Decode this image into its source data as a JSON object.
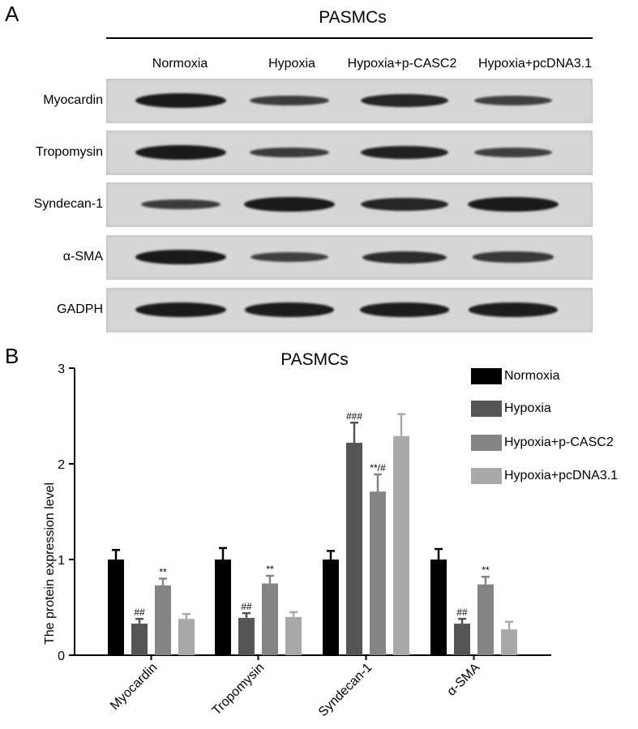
{
  "panel_a": {
    "letter": "A",
    "title": "PASMCs",
    "lanes": [
      "Normoxia",
      "Hypoxia",
      "Hypoxia+p-CASC2",
      "Hypoxia+pcDNA3.1"
    ],
    "rows": [
      {
        "label": "Myocardin",
        "band_intensity": [
          1.0,
          0.55,
          0.85,
          0.5
        ]
      },
      {
        "label": "Tropomysin",
        "band_intensity": [
          1.0,
          0.55,
          0.9,
          0.5
        ]
      },
      {
        "label": "Syndecan-1",
        "band_intensity": [
          0.55,
          1.0,
          0.85,
          1.0
        ]
      },
      {
        "label": "α-SMA",
        "band_intensity": [
          1.0,
          0.5,
          0.75,
          0.6
        ]
      },
      {
        "label": "GADPH",
        "band_intensity": [
          1.0,
          0.95,
          0.95,
          0.95
        ]
      }
    ]
  },
  "chart_data": {
    "type": "bar",
    "letter": "B",
    "title": "PASMCs",
    "xlabel": "",
    "ylabel": "The protein expression level",
    "ylim": [
      0,
      3
    ],
    "yticks": [
      0,
      1,
      2,
      3
    ],
    "categories": [
      "Myocardin",
      "Tropomysin",
      "Syndecan-1",
      "α-SMA"
    ],
    "legend_position": "top-right",
    "series": [
      {
        "name": "Normoxia",
        "color": "#000000",
        "values": [
          1.0,
          1.0,
          1.0,
          1.0
        ],
        "errors": [
          0.1,
          0.12,
          0.09,
          0.11
        ],
        "annotations": [
          "",
          "",
          "",
          ""
        ]
      },
      {
        "name": "Hypoxia",
        "color": "#555555",
        "values": [
          0.33,
          0.39,
          2.22,
          0.33
        ],
        "errors": [
          0.05,
          0.05,
          0.21,
          0.05
        ],
        "annotations": [
          "##",
          "##",
          "###",
          "##"
        ]
      },
      {
        "name": "Hypoxia+p-CASC2",
        "color": "#848484",
        "values": [
          0.73,
          0.75,
          1.71,
          0.74
        ],
        "errors": [
          0.07,
          0.08,
          0.18,
          0.08
        ],
        "annotations": [
          "**",
          "**",
          "**/#",
          "**"
        ]
      },
      {
        "name": "Hypoxia+pcDNA3.1",
        "color": "#a9a9a9",
        "values": [
          0.38,
          0.4,
          2.29,
          0.27
        ],
        "errors": [
          0.05,
          0.05,
          0.23,
          0.08
        ],
        "annotations": [
          "",
          "",
          "",
          ""
        ]
      }
    ]
  }
}
